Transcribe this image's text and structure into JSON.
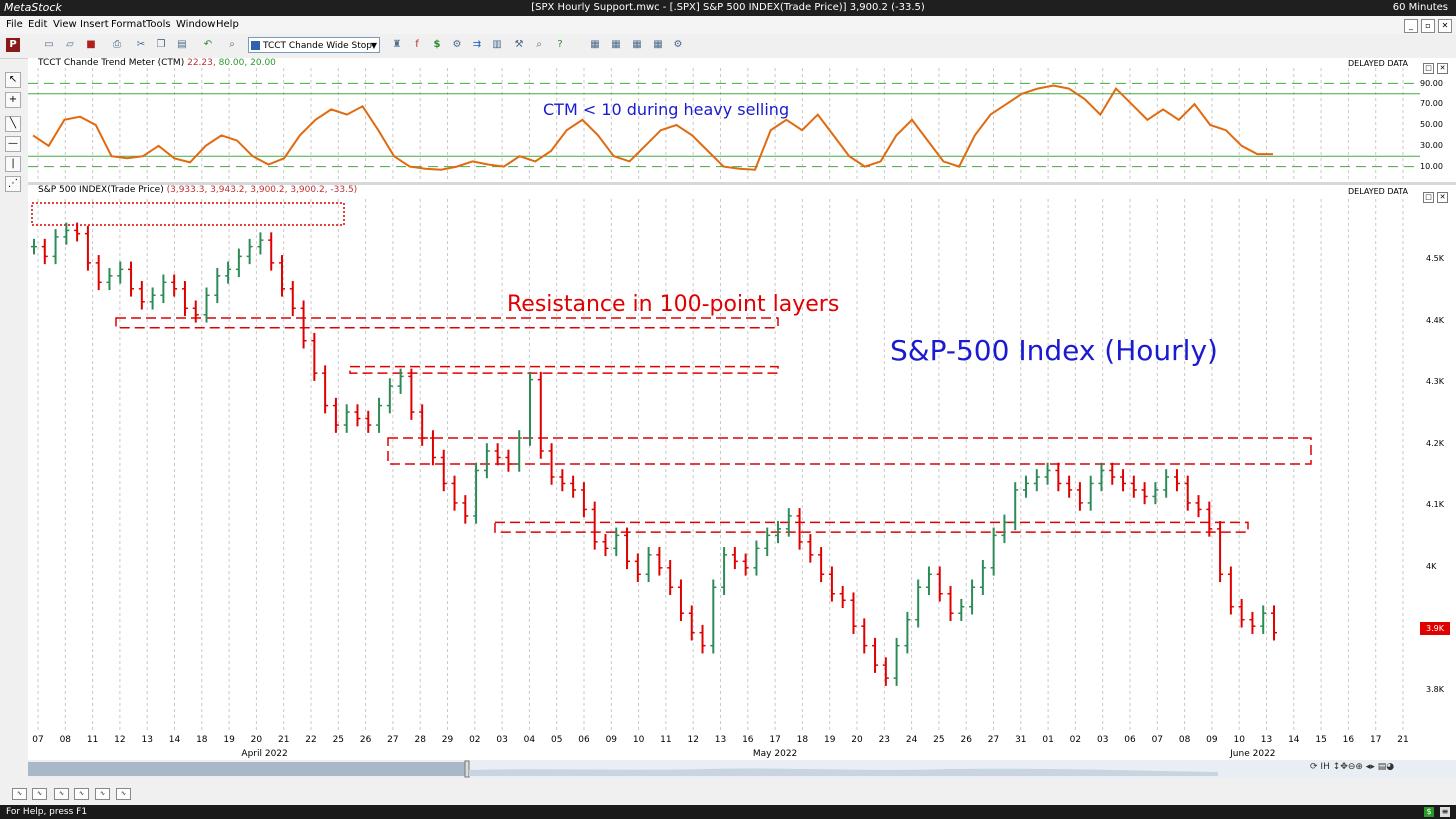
{
  "window": {
    "app_name": "MetaStock",
    "title": "[SPX Hourly Support.mwc - [.SPX] S&P 500 INDEX(Trade Price)]   3,900.2 (-33.5)",
    "periodicity": "60 Minutes"
  },
  "menu": [
    "File",
    "Edit",
    "View",
    "Insert",
    "Format",
    "Tools",
    "Window",
    "Help"
  ],
  "toolbar": {
    "indicator_selected": "TCCT Chande Wide Stop"
  },
  "indicator_panel": {
    "name": "TCCT Chande Trend Meter (CTM)",
    "values_text": "(22.23, 80.00, 20.00)",
    "values": {
      "ctm": "22.23",
      "upper": "80.00",
      "lower": "20.00"
    },
    "delayed": "DELAYED DATA",
    "annotation": "CTM < 10 during heavy selling",
    "y_ticks": [
      "90.00",
      "70.00",
      "50.00",
      "30.00",
      "10.00"
    ]
  },
  "price_panel": {
    "name": "S&P 500 INDEX(Trade Price)",
    "values_text": "(3,933.3, 3,943.2, 3,900.2, 3,900.2, -33.5)",
    "delayed": "DELAYED DATA",
    "annotation_resistance": "Resistance in 100-point layers",
    "annotation_title": "S&P-500 Index (Hourly)",
    "y_ticks": [
      "4.5K",
      "4.4K",
      "4.3K",
      "4.2K",
      "4.1K",
      "4K",
      "3.9K",
      "3.8K"
    ],
    "last_price_badge": "3.9K"
  },
  "x_axis": {
    "dates": [
      "07",
      "08",
      "11",
      "12",
      "13",
      "14",
      "18",
      "19",
      "20",
      "21",
      "22",
      "25",
      "26",
      "27",
      "28",
      "29",
      "02",
      "03",
      "04",
      "05",
      "06",
      "09",
      "10",
      "11",
      "12",
      "13",
      "16",
      "17",
      "18",
      "19",
      "20",
      "23",
      "24",
      "25",
      "26",
      "27",
      "31",
      "01",
      "02",
      "03",
      "06",
      "07",
      "08",
      "09",
      "10",
      "13",
      "14",
      "15",
      "16",
      "17",
      "21"
    ],
    "months": [
      "April 2022",
      "May 2022",
      "June 2022"
    ]
  },
  "statusbar": {
    "help_text": "For Help, press F1"
  },
  "colors": {
    "up_bar": "#2e8b57",
    "down_bar": "#e00000",
    "ctm_line": "#e06a10",
    "guide_green": "#44aa44",
    "resistance": "#e00000",
    "title_blue": "#1a1ad0"
  },
  "chart_data": [
    {
      "type": "line",
      "title": "TCCT Chande Trend Meter (CTM)",
      "series": [
        {
          "name": "CTM",
          "values": [
            40,
            30,
            55,
            58,
            50,
            20,
            18,
            20,
            30,
            18,
            14,
            30,
            40,
            35,
            20,
            12,
            18,
            40,
            55,
            65,
            60,
            68,
            45,
            20,
            10,
            8,
            7,
            10,
            15,
            12,
            10,
            20,
            15,
            25,
            45,
            55,
            40,
            20,
            15,
            30,
            45,
            50,
            40,
            25,
            10,
            8,
            7,
            45,
            55,
            45,
            60,
            40,
            20,
            10,
            15,
            40,
            55,
            35,
            15,
            10,
            40,
            60,
            70,
            80,
            85,
            88,
            85,
            75,
            60,
            85,
            70,
            55,
            65,
            55,
            70,
            50,
            45,
            30,
            22,
            22
          ]
        }
      ],
      "reference_lines": [
        90,
        80,
        20,
        10
      ],
      "ylim": [
        0,
        100
      ]
    },
    {
      "type": "bar",
      "title": "S&P 500 INDEX(Trade Price)",
      "series": [
        {
          "name": "S&P 500 INDEX",
          "values": [
            4495,
            4480,
            4510,
            4520,
            4515,
            4470,
            4440,
            4450,
            4460,
            4430,
            4410,
            4420,
            4440,
            4430,
            4400,
            4390,
            4420,
            4450,
            4460,
            4480,
            4495,
            4505,
            4470,
            4430,
            4400,
            4350,
            4300,
            4250,
            4220,
            4240,
            4230,
            4220,
            4250,
            4280,
            4295,
            4240,
            4200,
            4170,
            4130,
            4100,
            4080,
            4150,
            4180,
            4170,
            4160,
            4200,
            4290,
            4180,
            4140,
            4130,
            4120,
            4090,
            4040,
            4030,
            4050,
            4010,
            3990,
            4020,
            4000,
            3970,
            3930,
            3900,
            3880,
            3970,
            4020,
            4010,
            4000,
            4030,
            4050,
            4060,
            4080,
            4040,
            4020,
            3990,
            3960,
            3950,
            3910,
            3880,
            3850,
            3830,
            3880,
            3920,
            3970,
            3990,
            3960,
            3930,
            3940,
            3970,
            4000,
            4050,
            4070,
            4120,
            4130,
            4140,
            4150,
            4130,
            4120,
            4100,
            4130,
            4150,
            4140,
            4130,
            4120,
            4110,
            4120,
            4140,
            4130,
            4100,
            4090,
            4060,
            3990,
            3940,
            3920,
            3910,
            3930,
            3900
          ]
        }
      ],
      "ylim": [
        3750,
        4590
      ],
      "resistance_zones": [
        [
          4370,
          4385
        ],
        [
          4300,
          4310
        ],
        [
          4160,
          4200
        ],
        [
          4055,
          4070
        ]
      ]
    }
  ]
}
